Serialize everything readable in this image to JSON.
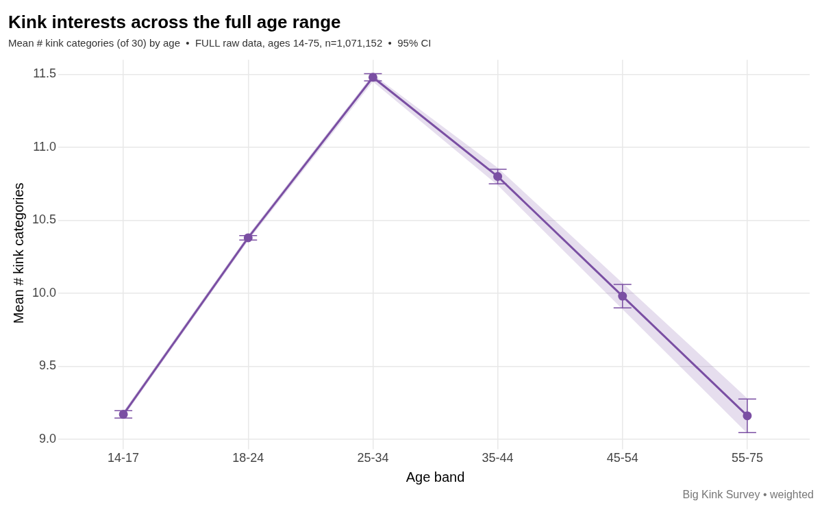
{
  "chart_data": {
    "type": "line",
    "title": "Kink interests across the full age range",
    "subtitle": "Mean # kink categories (of 30) by age  •  FULL raw data, ages 14-75, n=1,071,152  •  95% CI",
    "xlabel": "Age band",
    "ylabel": "Mean # kink categories",
    "annotations": [
      "Big Kink Survey  •  weighted"
    ],
    "categories": [
      "14-17",
      "18-24",
      "25-34",
      "35-44",
      "45-54",
      "55-75"
    ],
    "series": [
      {
        "color": "#7b4fa3",
        "values": [
          9.17,
          10.38,
          11.48,
          10.8,
          9.98,
          9.16
        ],
        "errors": [
          0.025,
          0.015,
          0.025,
          0.05,
          0.08,
          0.115
        ],
        "lower": [
          9.15,
          10.36,
          11.45,
          10.74,
          9.89,
          9.04
        ],
        "upper": [
          9.19,
          10.4,
          11.5,
          10.86,
          10.07,
          9.28
        ]
      }
    ],
    "ylim": [
      8.95,
      11.6
    ],
    "yticks": [
      {
        "value": 9,
        "label": "9.0"
      },
      9.5,
      {
        "value": 10,
        "label": "10.0"
      },
      10.5,
      {
        "value": 11,
        "label": "11.0"
      },
      11.5
    ],
    "grid": true,
    "legend": false,
    "marker": "circle",
    "line_style": "solid"
  }
}
